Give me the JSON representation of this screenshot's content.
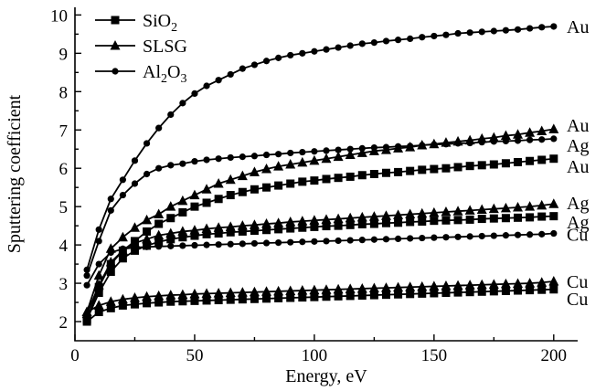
{
  "chart_data": {
    "type": "line",
    "xlabel": "Energy, eV",
    "ylabel": "Sputtering coefficient",
    "xlim": [
      0,
      210
    ],
    "ylim": [
      1.5,
      10.2
    ],
    "x_ticks": [
      0,
      50,
      100,
      150,
      200
    ],
    "y_ticks": [
      2,
      3,
      4,
      5,
      6,
      7,
      8,
      9,
      10
    ],
    "grid": false,
    "legend_placement": "top-left",
    "legend": [
      {
        "label": "SiO",
        "sub": "2",
        "tail": "",
        "marker": "square"
      },
      {
        "label": "SLSG",
        "sub": "",
        "tail": "",
        "marker": "triangle"
      },
      {
        "label": "Al",
        "sub": "2",
        "tail": "O",
        "sub2": "3",
        "marker": "circle"
      }
    ],
    "x": [
      5,
      10,
      15,
      20,
      25,
      30,
      35,
      40,
      45,
      50,
      55,
      60,
      65,
      70,
      75,
      80,
      85,
      90,
      95,
      100,
      105,
      110,
      115,
      120,
      125,
      130,
      135,
      140,
      145,
      150,
      155,
      160,
      165,
      170,
      175,
      180,
      185,
      190,
      195,
      200
    ],
    "series": [
      {
        "name": "Au",
        "group": "Al2O3",
        "marker": "circle",
        "values": [
          3.35,
          4.4,
          5.2,
          5.7,
          6.2,
          6.65,
          7.05,
          7.4,
          7.7,
          7.95,
          8.15,
          8.3,
          8.45,
          8.6,
          8.7,
          8.8,
          8.88,
          8.95,
          9.0,
          9.05,
          9.1,
          9.15,
          9.2,
          9.25,
          9.28,
          9.32,
          9.35,
          9.38,
          9.42,
          9.45,
          9.48,
          9.52,
          9.54,
          9.56,
          9.58,
          9.6,
          9.62,
          9.65,
          9.68,
          9.7
        ]
      },
      {
        "name": "Au",
        "group": "SLSG",
        "marker": "triangle",
        "values": [
          2.25,
          3.2,
          3.9,
          4.2,
          4.45,
          4.65,
          4.8,
          5.0,
          5.15,
          5.3,
          5.45,
          5.6,
          5.7,
          5.8,
          5.9,
          5.98,
          6.05,
          6.1,
          6.15,
          6.2,
          6.25,
          6.3,
          6.35,
          6.4,
          6.45,
          6.48,
          6.52,
          6.55,
          6.6,
          6.63,
          6.67,
          6.7,
          6.73,
          6.77,
          6.8,
          6.85,
          6.88,
          6.93,
          6.97,
          7.02
        ]
      },
      {
        "name": "Ag",
        "group": "Al2O3",
        "marker": "circle",
        "values": [
          3.2,
          4.1,
          4.9,
          5.3,
          5.6,
          5.85,
          6.0,
          6.08,
          6.12,
          6.18,
          6.22,
          6.25,
          6.28,
          6.3,
          6.32,
          6.35,
          6.37,
          6.4,
          6.42,
          6.44,
          6.46,
          6.48,
          6.5,
          6.52,
          6.54,
          6.55,
          6.57,
          6.58,
          6.6,
          6.62,
          6.63,
          6.65,
          6.66,
          6.68,
          6.7,
          6.71,
          6.72,
          6.74,
          6.75,
          6.77
        ]
      },
      {
        "name": "Au",
        "group": "SiO2",
        "marker": "square",
        "values": [
          2.05,
          2.9,
          3.5,
          3.85,
          4.1,
          4.35,
          4.55,
          4.7,
          4.85,
          5.0,
          5.1,
          5.2,
          5.3,
          5.38,
          5.45,
          5.5,
          5.55,
          5.6,
          5.65,
          5.68,
          5.72,
          5.75,
          5.78,
          5.82,
          5.85,
          5.88,
          5.9,
          5.93,
          5.96,
          5.98,
          6.0,
          6.03,
          6.06,
          6.08,
          6.1,
          6.13,
          6.16,
          6.19,
          6.22,
          6.25
        ]
      },
      {
        "name": "Ag",
        "group": "SLSG",
        "marker": "triangle",
        "values": [
          2.2,
          2.95,
          3.55,
          3.85,
          4.05,
          4.15,
          4.25,
          4.3,
          4.35,
          4.38,
          4.42,
          4.45,
          4.47,
          4.5,
          4.52,
          4.55,
          4.57,
          4.6,
          4.62,
          4.64,
          4.66,
          4.68,
          4.7,
          4.72,
          4.74,
          4.76,
          4.78,
          4.8,
          4.82,
          4.84,
          4.86,
          4.88,
          4.9,
          4.92,
          4.94,
          4.96,
          4.98,
          5.0,
          5.03,
          5.07
        ]
      },
      {
        "name": "Ag",
        "group": "SiO2",
        "marker": "square",
        "values": [
          2.05,
          2.75,
          3.3,
          3.65,
          3.85,
          3.98,
          4.08,
          4.15,
          4.2,
          4.24,
          4.28,
          4.3,
          4.33,
          4.35,
          4.37,
          4.39,
          4.41,
          4.43,
          4.45,
          4.47,
          4.49,
          4.5,
          4.52,
          4.54,
          4.55,
          4.57,
          4.58,
          4.6,
          4.61,
          4.63,
          4.64,
          4.65,
          4.66,
          4.68,
          4.69,
          4.7,
          4.71,
          4.72,
          4.74,
          4.75
        ]
      },
      {
        "name": "Cu",
        "group": "Al2O3",
        "marker": "circle",
        "values": [
          2.95,
          3.5,
          3.8,
          3.9,
          3.93,
          3.95,
          3.96,
          3.97,
          3.98,
          3.99,
          4.0,
          4.01,
          4.02,
          4.03,
          4.04,
          4.05,
          4.06,
          4.07,
          4.08,
          4.09,
          4.1,
          4.11,
          4.12,
          4.13,
          4.14,
          4.15,
          4.16,
          4.17,
          4.18,
          4.19,
          4.2,
          4.21,
          4.22,
          4.23,
          4.24,
          4.25,
          4.26,
          4.27,
          4.28,
          4.3
        ]
      },
      {
        "name": "Cu",
        "group": "SLSG",
        "marker": "triangle",
        "values": [
          2.25,
          2.42,
          2.52,
          2.58,
          2.62,
          2.65,
          2.67,
          2.69,
          2.7,
          2.72,
          2.73,
          2.74,
          2.75,
          2.76,
          2.77,
          2.78,
          2.79,
          2.8,
          2.81,
          2.82,
          2.83,
          2.84,
          2.85,
          2.86,
          2.87,
          2.88,
          2.89,
          2.9,
          2.91,
          2.92,
          2.93,
          2.94,
          2.95,
          2.96,
          2.97,
          2.98,
          2.99,
          3.0,
          3.02,
          3.05
        ]
      },
      {
        "name": "Cu",
        "group": "SiO2",
        "marker": "square",
        "values": [
          2.0,
          2.25,
          2.35,
          2.42,
          2.45,
          2.48,
          2.5,
          2.52,
          2.53,
          2.54,
          2.55,
          2.56,
          2.57,
          2.58,
          2.59,
          2.6,
          2.61,
          2.62,
          2.63,
          2.64,
          2.65,
          2.66,
          2.67,
          2.68,
          2.69,
          2.7,
          2.71,
          2.72,
          2.73,
          2.74,
          2.75,
          2.76,
          2.77,
          2.78,
          2.79,
          2.8,
          2.81,
          2.82,
          2.83,
          2.84
        ]
      }
    ],
    "end_labels": [
      {
        "text": "Au",
        "y": 9.7
      },
      {
        "text": "Au",
        "y": 7.12
      },
      {
        "text": "Ag",
        "y": 6.6
      },
      {
        "text": "Au",
        "y": 6.05
      },
      {
        "text": "Ag",
        "y": 5.1
      },
      {
        "text": "Ag",
        "y": 4.6
      },
      {
        "text": "Cu",
        "y": 4.28
      },
      {
        "text": "Cu",
        "y": 3.05
      },
      {
        "text": "Cu",
        "y": 2.6
      }
    ]
  }
}
